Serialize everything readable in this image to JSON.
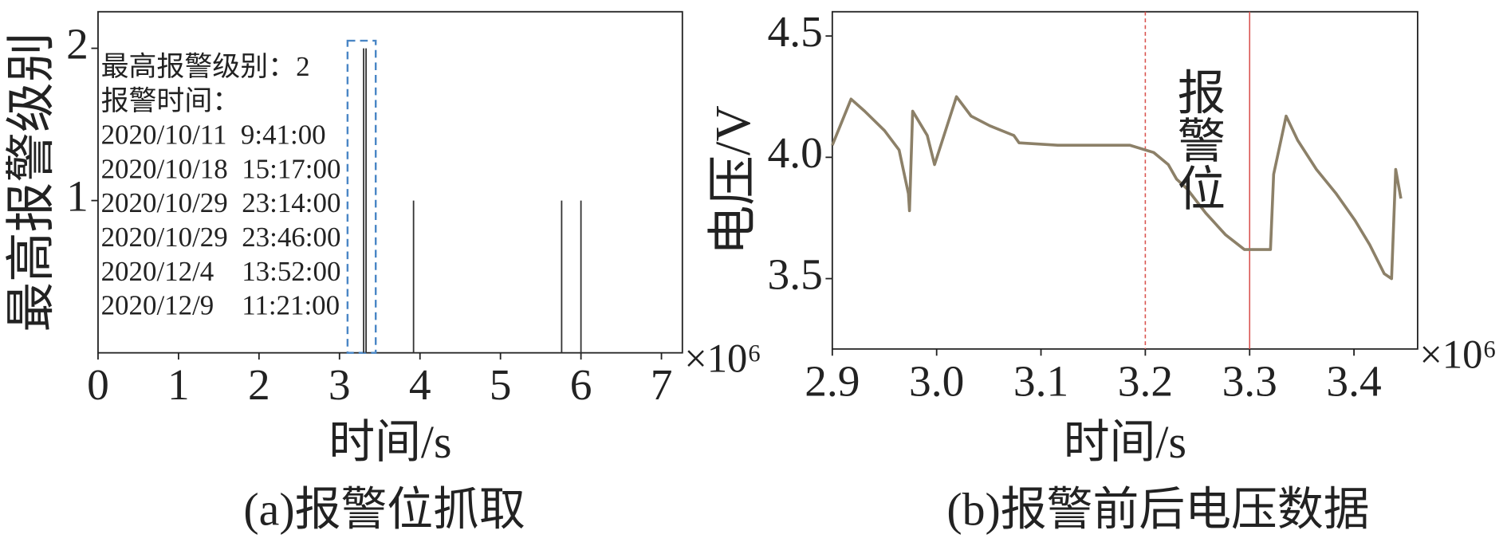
{
  "chart_data": [
    {
      "type": "bar",
      "xlabel": "时间/s",
      "ylabel": "最高报警级别",
      "caption": "(a)报警位抓取",
      "x_offset_label": "×10⁶",
      "x": [
        3.3,
        3.33,
        3.92,
        5.76,
        6.0
      ],
      "values": [
        2,
        2,
        1,
        1,
        1
      ],
      "color": "#333333",
      "xlim": [
        0,
        7.26
      ],
      "ylim": [
        0,
        2.24
      ],
      "xticks": [
        0,
        1,
        2,
        3,
        4,
        5,
        6,
        7
      ],
      "yticks": [
        1,
        2
      ],
      "highlight_box": {
        "xlim": [
          3.1,
          3.45
        ],
        "ylim": [
          0,
          2.05
        ],
        "color": "#4a86c5"
      },
      "annotation": [
        "最高报警级别：2",
        "报警时间：",
        "2020/10/11  9:41:00",
        "2020/10/18  15:17:00",
        "2020/10/29  23:14:00",
        "2020/10/29  23:46:00",
        "2020/12/4    13:52:00",
        "2020/12/9    11:21:00"
      ]
    },
    {
      "type": "line",
      "xlabel": "时间/s",
      "ylabel": "电压/V",
      "caption": "(b)报警前后电压数据",
      "x_offset_label": "×10⁶",
      "x": [
        2.9,
        2.918,
        2.931,
        2.95,
        2.964,
        2.973,
        2.974,
        2.977,
        2.991,
        2.998,
        3.019,
        3.033,
        3.051,
        3.074,
        3.079,
        3.116,
        3.185,
        3.208,
        3.222,
        3.23,
        3.24,
        3.258,
        3.277,
        3.295,
        3.32,
        3.323,
        3.335,
        3.346,
        3.364,
        3.383,
        3.401,
        3.415,
        3.429,
        3.436,
        3.44,
        3.445
      ],
      "series": [
        {
          "color": "#8c8068",
          "values": [
            4.05,
            4.24,
            4.19,
            4.11,
            4.03,
            3.85,
            3.78,
            4.19,
            4.09,
            3.97,
            4.25,
            4.17,
            4.13,
            4.09,
            4.06,
            4.05,
            4.05,
            4.02,
            3.97,
            3.91,
            3.87,
            3.77,
            3.68,
            3.62,
            3.62,
            3.93,
            4.17,
            4.07,
            3.95,
            3.85,
            3.74,
            3.64,
            3.52,
            3.5,
            3.95,
            3.83
          ]
        }
      ],
      "xlim": [
        2.9,
        3.461
      ],
      "ylim": [
        3.21,
        4.6
      ],
      "xticks": [
        2.9,
        {
          "value": 3,
          "label": "3.0"
        },
        3.1,
        3.2,
        3.3,
        3.4
      ],
      "yticks": [
        3.5,
        {
          "value": 4,
          "label": "4.0"
        },
        4.5
      ],
      "vlines": [
        3.2,
        3.3
      ],
      "vline_color": "#d9534f",
      "annotation": "报警位"
    }
  ]
}
